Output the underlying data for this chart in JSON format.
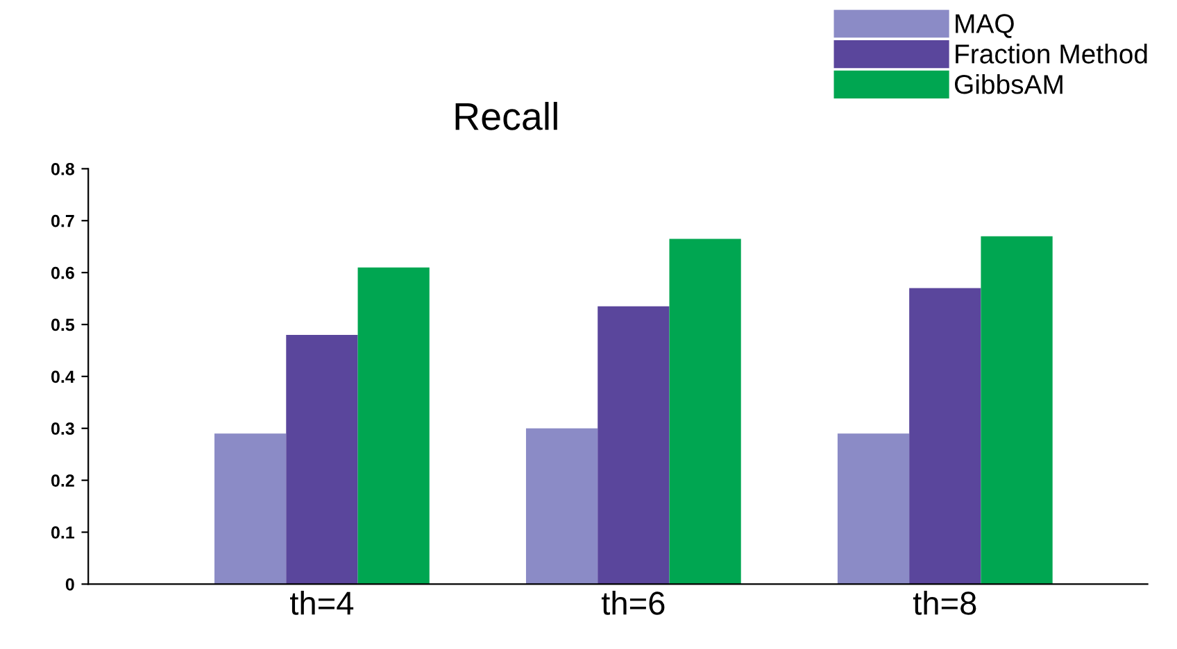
{
  "chart_data": {
    "type": "bar",
    "title": "Recall",
    "categories": [
      "th=4",
      "th=6",
      "th=8"
    ],
    "series": [
      {
        "name": "MAQ",
        "color": "#8b8bc6",
        "values": [
          0.29,
          0.3,
          0.29
        ]
      },
      {
        "name": "Fraction Method",
        "color": "#5a469c",
        "values": [
          0.48,
          0.535,
          0.57
        ]
      },
      {
        "name": "GibbsAM",
        "color": "#00a651",
        "values": [
          0.61,
          0.665,
          0.67
        ]
      }
    ],
    "ylim": [
      0,
      0.8
    ],
    "yticks": [
      0,
      0.1,
      0.2,
      0.3,
      0.4,
      0.5,
      0.6,
      0.7,
      0.8
    ],
    "grid": false,
    "legend": "top right"
  }
}
